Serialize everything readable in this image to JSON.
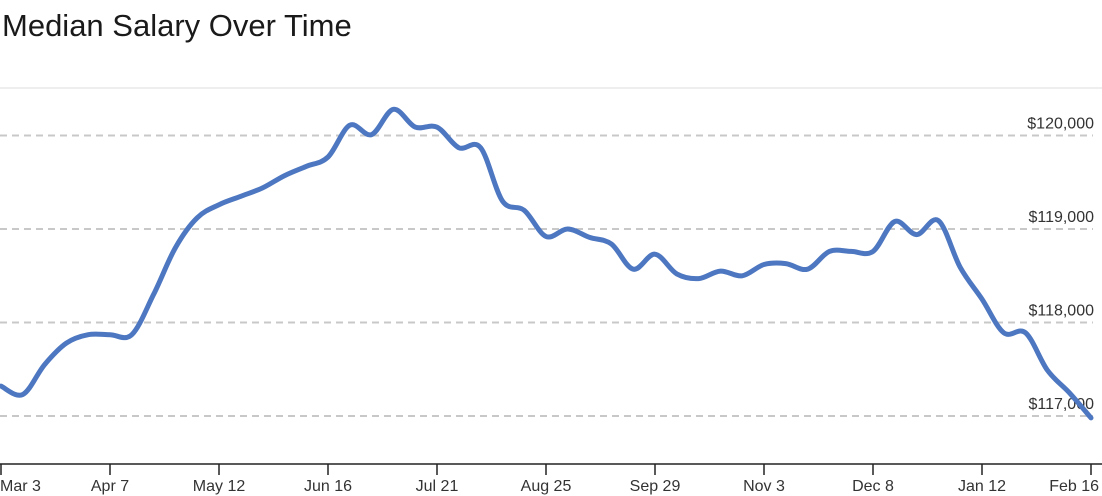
{
  "header": {
    "title": "Median Salary Over Time"
  },
  "chart_data": {
    "type": "line",
    "title": "Median Salary Over Time",
    "x": [
      "Mar 3",
      "Mar 10",
      "Mar 17",
      "Mar 24",
      "Mar 31",
      "Apr 7",
      "Apr 14",
      "Apr 21",
      "Apr 28",
      "May 5",
      "May 12",
      "May 19",
      "May 26",
      "Jun 2",
      "Jun 9",
      "Jun 16",
      "Jun 23",
      "Jun 30",
      "Jul 7",
      "Jul 14",
      "Jul 21",
      "Jul 28",
      "Aug 4",
      "Aug 11",
      "Aug 18",
      "Aug 25",
      "Sep 1",
      "Sep 8",
      "Sep 15",
      "Sep 22",
      "Sep 29",
      "Oct 6",
      "Oct 13",
      "Oct 20",
      "Oct 27",
      "Nov 3",
      "Nov 10",
      "Nov 17",
      "Nov 24",
      "Dec 1",
      "Dec 8",
      "Dec 15",
      "Dec 22",
      "Dec 29",
      "Jan 5",
      "Jan 12",
      "Jan 19",
      "Jan 26",
      "Feb 2",
      "Feb 9",
      "Feb 16"
    ],
    "series": [
      {
        "name": "Median Salary",
        "values": [
          117320,
          117230,
          117550,
          117780,
          117870,
          117870,
          117870,
          118300,
          118800,
          119120,
          119260,
          119350,
          119440,
          119570,
          119670,
          119770,
          120110,
          120010,
          120280,
          120090,
          120090,
          119870,
          119870,
          119300,
          119200,
          118920,
          119000,
          118910,
          118840,
          118570,
          118730,
          118520,
          118470,
          118550,
          118500,
          118620,
          118630,
          118570,
          118760,
          118760,
          118760,
          119080,
          118940,
          119090,
          118590,
          118250,
          117890,
          117890,
          117490,
          117250,
          116980
        ]
      }
    ],
    "x_tick_labels": [
      "Mar 3",
      "Apr 7",
      "May 12",
      "Jun 16",
      "Jul 21",
      "Aug 25",
      "Sep 29",
      "Nov 3",
      "Dec 8",
      "Jan 12",
      "Feb 16"
    ],
    "x_tick_every": 5,
    "y_ticks": [
      {
        "value": 117000,
        "label": "$117,000"
      },
      {
        "value": 118000,
        "label": "$118,000"
      },
      {
        "value": 119000,
        "label": "$119,000"
      },
      {
        "value": 120000,
        "label": "$120,000"
      }
    ],
    "ylim": [
      116550,
      120500
    ],
    "grid": "dashed-horizontal",
    "legend": "none",
    "colors": {
      "line": "#4d77c1",
      "grid": "#c8c8c8",
      "plot_top_border": "#e8e8e8",
      "axis": "#222222",
      "label": "#333333"
    }
  }
}
